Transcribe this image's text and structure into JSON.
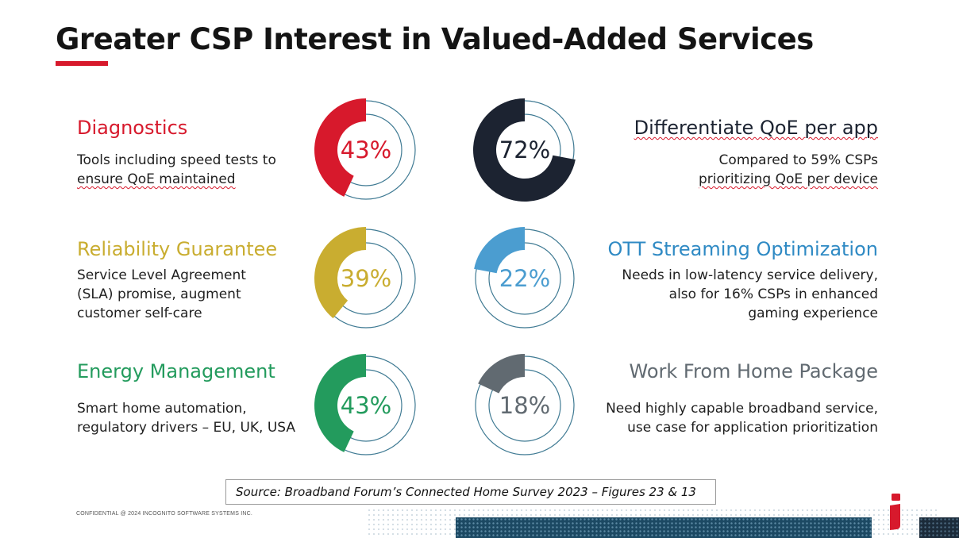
{
  "title": "Greater CSP Interest in Valued-Added Services",
  "colors": {
    "accent_red": "#d7192c",
    "gold": "#c9ad30",
    "green": "#239b5d",
    "navy": "#1c2331",
    "blue": "#4b9dd0",
    "gray": "#616a71",
    "ring": "#3f7a93"
  },
  "left": [
    {
      "heading": "Diagnostics",
      "desc_lines": [
        "Tools including speed tests to",
        "ensure QoE maintained"
      ]
    },
    {
      "heading": "Reliability Guarantee",
      "desc_lines": [
        "Service Level Agreement",
        "(SLA) promise, augment",
        "customer self-care"
      ]
    },
    {
      "heading": "Energy Management",
      "desc_lines": [
        "Smart home automation,",
        "regulatory drivers – EU, UK, USA"
      ]
    }
  ],
  "right": [
    {
      "heading": "Differentiate QoE per app",
      "desc_lines": [
        "Compared to 59% CSPs",
        "prioritizing QoE per device"
      ]
    },
    {
      "heading": "OTT Streaming Optimization",
      "desc_lines": [
        "Needs in low-latency service delivery,",
        "also for 16% CSPs in enhanced",
        "gaming experience"
      ]
    },
    {
      "heading": "Work From Home Package",
      "desc_lines": [
        "Need highly capable broadband service,",
        "use case for application prioritization"
      ]
    }
  ],
  "chart_data": {
    "type": "donut",
    "series": [
      {
        "name": "Diagnostics",
        "value": 43,
        "label": "43%",
        "color": "#d7192c"
      },
      {
        "name": "Reliability Guarantee",
        "value": 39,
        "label": "39%",
        "color": "#c9ad30"
      },
      {
        "name": "Energy Management",
        "value": 43,
        "label": "43%",
        "color": "#239b5d"
      },
      {
        "name": "Differentiate QoE per app",
        "value": 72,
        "label": "72%",
        "color": "#1c2331"
      },
      {
        "name": "OTT Streaming Optimization",
        "value": 22,
        "label": "22%",
        "color": "#4b9dd0"
      },
      {
        "name": "Work From Home Package",
        "value": 18,
        "label": "18%",
        "color": "#616a71"
      }
    ],
    "unit": "%"
  },
  "source": "Source:  Broadband Forum’s Connected Home Survey 2023 – Figures 23 & 13",
  "confidential": "CONFIDENTIAL @ 2024 INCOGNITO SOFTWARE SYSTEMS INC."
}
